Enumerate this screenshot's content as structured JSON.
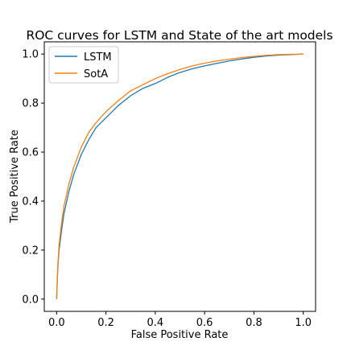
{
  "chart_data": {
    "type": "line",
    "title": "ROC curves for LSTM and State of the art models",
    "xlabel": "False Positive Rate",
    "ylabel": "True Positive Rate",
    "xlim": [
      -0.05,
      1.05
    ],
    "ylim": [
      -0.05,
      1.05
    ],
    "xticks": [
      0.0,
      0.2,
      0.4,
      0.6,
      0.8,
      1.0
    ],
    "yticks": [
      0.0,
      0.2,
      0.4,
      0.6,
      0.8,
      1.0
    ],
    "xtick_labels": [
      "0.0",
      "0.2",
      "0.4",
      "0.6",
      "0.8",
      "1.0"
    ],
    "ytick_labels": [
      "0.0",
      "0.2",
      "0.4",
      "0.6",
      "0.8",
      "1.0"
    ],
    "grid": false,
    "legend_position": "top-left",
    "series": [
      {
        "name": "LSTM",
        "color": "#1f77b4",
        "x": [
          0.0,
          0.005,
          0.01,
          0.02,
          0.03,
          0.05,
          0.07,
          0.1,
          0.13,
          0.16,
          0.2,
          0.25,
          0.3,
          0.35,
          0.4,
          0.45,
          0.5,
          0.55,
          0.6,
          0.65,
          0.7,
          0.75,
          0.8,
          0.85,
          0.9,
          0.95,
          1.0
        ],
        "y": [
          0.0,
          0.13,
          0.2,
          0.28,
          0.35,
          0.44,
          0.51,
          0.59,
          0.65,
          0.7,
          0.74,
          0.79,
          0.83,
          0.86,
          0.88,
          0.905,
          0.925,
          0.94,
          0.952,
          0.962,
          0.972,
          0.98,
          0.987,
          0.992,
          0.996,
          0.998,
          1.0
        ]
      },
      {
        "name": "SotA",
        "color": "#ff7f0e",
        "x": [
          0.0,
          0.005,
          0.01,
          0.02,
          0.03,
          0.05,
          0.07,
          0.1,
          0.13,
          0.16,
          0.2,
          0.25,
          0.3,
          0.35,
          0.4,
          0.45,
          0.5,
          0.55,
          0.6,
          0.65,
          0.7,
          0.75,
          0.8,
          0.85,
          0.9,
          0.95,
          1.0
        ],
        "y": [
          0.0,
          0.14,
          0.22,
          0.31,
          0.38,
          0.47,
          0.54,
          0.62,
          0.68,
          0.72,
          0.765,
          0.81,
          0.85,
          0.875,
          0.9,
          0.92,
          0.937,
          0.952,
          0.963,
          0.972,
          0.979,
          0.986,
          0.991,
          0.995,
          0.998,
          0.999,
          1.0
        ]
      }
    ]
  }
}
